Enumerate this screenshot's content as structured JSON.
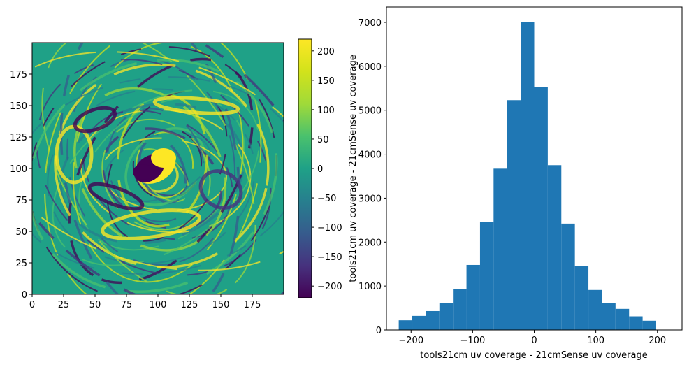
{
  "chart_data": [
    {
      "type": "heatmap",
      "title": "",
      "xlabel": "",
      "ylabel": "",
      "xlim": [
        0,
        200
      ],
      "ylim": [
        0,
        200
      ],
      "xticks": [
        "0",
        "25",
        "50",
        "75",
        "100",
        "125",
        "150",
        "175"
      ],
      "yticks": [
        "0",
        "25",
        "50",
        "75",
        "100",
        "125",
        "150",
        "175"
      ],
      "origin": "lower",
      "colormap": "viridis",
      "colorbar": {
        "range": [
          -220,
          220
        ],
        "ticks": [
          "−200",
          "−150",
          "−100",
          "−50",
          "0",
          "50",
          "100",
          "150",
          "200"
        ]
      },
      "description_of_pattern": "ring/ripple residual pattern centered near (100, 100), saturated positive (yellow) and negative (dark purple) blob at center"
    },
    {
      "type": "bar",
      "subtype": "histogram",
      "title": "",
      "xlabel": "tools21cm uv coverage - 21cmSense uv coverage",
      "ylabel": "tools21cm  uv coverage - 21cmSense uv coverage",
      "xlim": [
        -240,
        240
      ],
      "ylim": [
        0,
        7350
      ],
      "xticks": [
        "−200",
        "−100",
        "0",
        "100",
        "200"
      ],
      "yticks": [
        "0",
        "1000",
        "2000",
        "3000",
        "4000",
        "5000",
        "6000",
        "7000"
      ],
      "bar_color": "#1f77b4",
      "bin_edges": [
        -220,
        -198,
        -176,
        -154,
        -132,
        -110,
        -88,
        -66,
        -44,
        -22,
        0,
        22,
        44,
        66,
        88,
        110,
        132,
        154,
        176,
        198,
        220
      ],
      "values": [
        220,
        320,
        430,
        620,
        930,
        1480,
        2460,
        3670,
        5230,
        7010,
        5530,
        3750,
        2420,
        1450,
        910,
        620,
        480,
        310,
        210,
        0
      ]
    }
  ]
}
